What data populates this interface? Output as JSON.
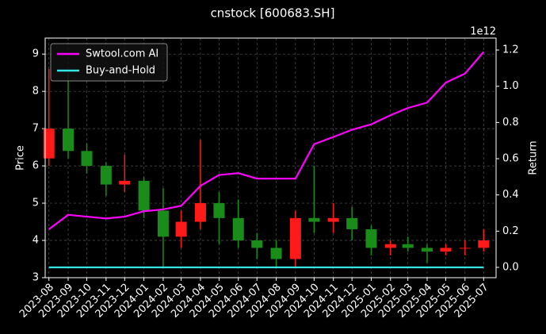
{
  "chart_data": {
    "type": "candlestick",
    "title": "cnstock [600683.SH]",
    "ylabel": "Price",
    "y2label": "Return",
    "y2_offset": "1e12",
    "x": [
      "2023-08",
      "2023-09",
      "2023-10",
      "2023-11",
      "2023-12",
      "2024-01",
      "2024-02",
      "2024-03",
      "2024-04",
      "2024-05",
      "2024-06",
      "2024-07",
      "2024-08",
      "2024-09",
      "2024-10",
      "2024-11",
      "2024-12",
      "2025-01",
      "2025-02",
      "2025-03",
      "2025-04",
      "2025-05",
      "2025-06",
      "2025-07"
    ],
    "open": [
      6.2,
      7.0,
      6.4,
      6.0,
      5.5,
      5.6,
      4.8,
      4.1,
      4.5,
      5.0,
      4.6,
      4.0,
      3.8,
      3.5,
      4.6,
      4.5,
      4.6,
      4.3,
      3.8,
      3.9,
      3.8,
      3.7,
      3.8,
      3.8
    ],
    "high": [
      8.6,
      8.5,
      6.6,
      6.1,
      6.3,
      5.7,
      5.4,
      4.8,
      6.7,
      5.3,
      5.1,
      4.2,
      4.0,
      4.8,
      6.0,
      5.0,
      4.9,
      4.4,
      4.0,
      4.1,
      3.9,
      3.9,
      4.0,
      4.3
    ],
    "low": [
      6.0,
      6.2,
      5.8,
      5.2,
      5.3,
      4.6,
      3.3,
      3.8,
      4.3,
      3.9,
      3.8,
      3.5,
      3.3,
      3.3,
      4.2,
      4.2,
      4.0,
      3.6,
      3.6,
      3.7,
      3.4,
      3.6,
      3.6,
      3.7
    ],
    "close": [
      7.0,
      6.4,
      6.0,
      5.5,
      5.6,
      4.8,
      4.1,
      4.5,
      5.0,
      4.6,
      4.0,
      3.8,
      3.5,
      4.6,
      4.5,
      4.6,
      4.3,
      3.8,
      3.9,
      3.8,
      3.7,
      3.8,
      3.8,
      4.0
    ],
    "up_color": "#ff1a1a",
    "down_color": "#1a8c1a",
    "series": [
      {
        "name": "Swtool.com AI",
        "color": "#ff00ff",
        "axis": "y2",
        "values": [
          0.21,
          0.29,
          0.28,
          0.27,
          0.28,
          0.31,
          0.32,
          0.34,
          0.45,
          0.51,
          0.52,
          0.49,
          0.49,
          0.49,
          0.68,
          0.72,
          0.76,
          0.79,
          0.84,
          0.88,
          0.91,
          1.02,
          1.07,
          1.19
        ]
      },
      {
        "name": "Buy-and-Hold",
        "color": "#33e6e6",
        "axis": "y2",
        "values": [
          0,
          0,
          0,
          0,
          0,
          0,
          0,
          0,
          0,
          0,
          0,
          0,
          0,
          0,
          0,
          0,
          0,
          0,
          0,
          0,
          0,
          0,
          0,
          0
        ]
      }
    ],
    "xlim": [
      "2023-07-26",
      "2025-07-21"
    ],
    "xticks": [
      "2023-08",
      "2023-09",
      "2023-10",
      "2023-11",
      "2023-12",
      "2024-01",
      "2024-02",
      "2024-03",
      "2024-04",
      "2024-05",
      "2024-06",
      "2024-07",
      "2024-08",
      "2024-09",
      "2024-10",
      "2024-11",
      "2024-12",
      "2025-01",
      "2025-02",
      "2025-03",
      "2025-04",
      "2025-05",
      "2025-06",
      "2025-07"
    ],
    "ylim": [
      3,
      9.43
    ],
    "yticks": [
      3,
      4,
      5,
      6,
      7,
      8,
      9
    ],
    "y2lim": [
      -0.057,
      1.266
    ],
    "y2ticks": [
      {
        "value": 0,
        "label": "0.0"
      },
      0.2,
      0.4,
      0.6,
      0.8,
      {
        "value": 1,
        "label": "1.0"
      },
      1.2
    ],
    "grid": true,
    "legend": "upper left"
  }
}
